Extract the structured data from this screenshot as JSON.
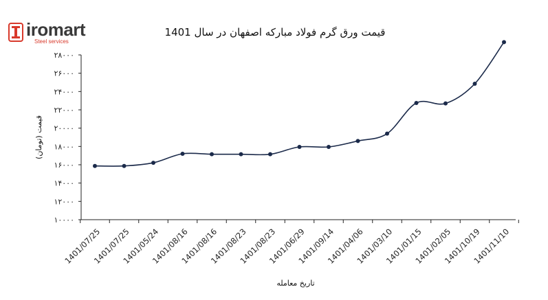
{
  "brand": {
    "name": "iromart",
    "tagline": "Steel services",
    "colors": {
      "accent": "#d8392b",
      "text": "#3a3a3a"
    }
  },
  "chart_data": {
    "type": "line",
    "title": "قیمت ورق گرم فولاد مبارکه اصفهان در سال 1401",
    "xlabel": "تاریخ معامله",
    "ylabel": "قیمت (تومان)",
    "categories": [
      "1401/07/25",
      "1401/07/25",
      "1401/05/24",
      "1401/08/16",
      "1401/08/16",
      "1401/08/23",
      "1401/08/23",
      "1401/06/29",
      "1401/09/14",
      "1401/04/06",
      "1401/03/10",
      "1401/01/15",
      "1401/02/05",
      "1401/10/19",
      "1401/11/10"
    ],
    "values": [
      15870,
      15870,
      16220,
      17200,
      17150,
      17150,
      17150,
      17950,
      17950,
      18600,
      19400,
      22750,
      22700,
      24850,
      29400
    ],
    "y_ticks": [
      "۱۰۰۰۰",
      "۱۲۰۰۰",
      "۱۴۰۰۰",
      "۱۶۰۰۰",
      "۱۸۰۰۰",
      "۲۰۰۰۰",
      "۲۲۰۰۰",
      "۲۴۰۰۰",
      "۲۶۰۰۰",
      "۲۸۰۰۰"
    ],
    "y_tick_values": [
      10000,
      12000,
      14000,
      16000,
      18000,
      20000,
      22000,
      24000,
      26000,
      28000
    ],
    "ylim": [
      10000,
      28000
    ],
    "grid": false,
    "legend": "none",
    "colors": {
      "line": "#1b2a4a",
      "marker": "#1b2a4a",
      "axis": "#222222"
    }
  }
}
